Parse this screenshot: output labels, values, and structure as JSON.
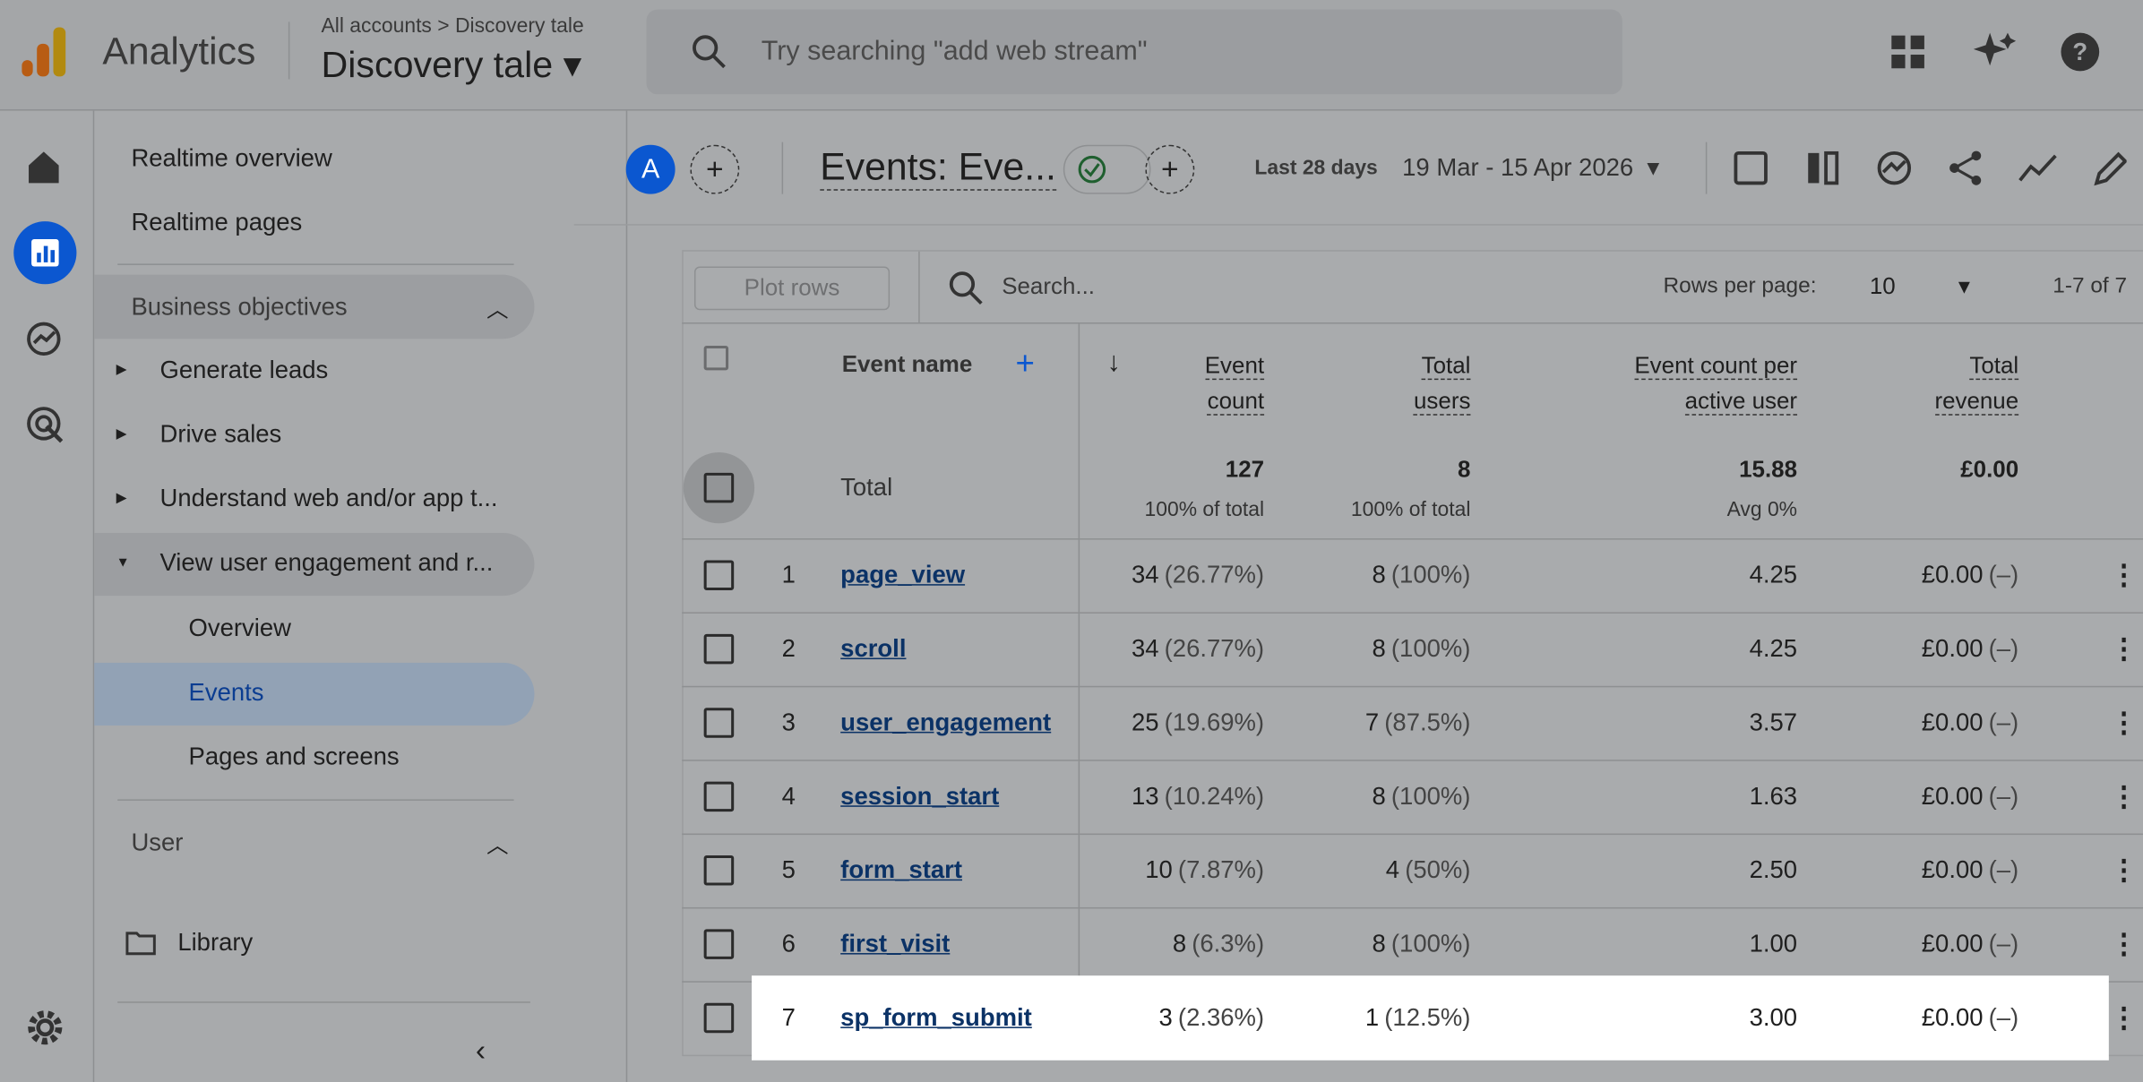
{
  "header": {
    "app": "Analytics",
    "breadcrumb": [
      "All accounts",
      "Discovery tale"
    ],
    "property": "Discovery tale",
    "search_placeholder": "Try searching \"add web stream\""
  },
  "nav": {
    "top": [
      "Realtime overview",
      "Realtime pages"
    ],
    "sections": [
      {
        "title": "Business objectives",
        "items": [
          "Generate leads",
          "Drive sales",
          "Understand web and/or app t...",
          "View user engagement and r..."
        ],
        "subitems": [
          "Overview",
          "Events",
          "Pages and screens"
        ]
      },
      {
        "title": "User"
      }
    ],
    "library": "Library"
  },
  "toolbar": {
    "avatar": "A",
    "report_title": "Events: Eve...",
    "range_label": "Last 28 days",
    "range": "19 Mar - 15 Apr 2026"
  },
  "table": {
    "plot_rows": "Plot rows",
    "search": "Search...",
    "rows_per_page_label": "Rows per page:",
    "rows_per_page": "10",
    "pagination": "1-7 of 7",
    "columns": [
      "Event name",
      "Event count",
      "Total users",
      "Event count per active user",
      "Total revenue"
    ],
    "total": {
      "label": "Total",
      "event_count": "127",
      "event_count_note": "100% of total",
      "users": "8",
      "users_note": "100% of total",
      "per_user": "15.88",
      "per_user_note": "Avg 0%",
      "revenue": "£0.00"
    },
    "rows": [
      [
        "1",
        "page_view",
        "34",
        "(26.77%)",
        "8",
        "(100%)",
        "4.25",
        "£0.00",
        "(–)"
      ],
      [
        "2",
        "scroll",
        "34",
        "(26.77%)",
        "8",
        "(100%)",
        "4.25",
        "£0.00",
        "(–)"
      ],
      [
        "3",
        "user_engagement",
        "25",
        "(19.69%)",
        "7",
        "(87.5%)",
        "3.57",
        "£0.00",
        "(–)"
      ],
      [
        "4",
        "session_start",
        "13",
        "(10.24%)",
        "8",
        "(100%)",
        "1.63",
        "£0.00",
        "(–)"
      ],
      [
        "5",
        "form_start",
        "10",
        "(7.87%)",
        "4",
        "(50%)",
        "2.50",
        "£0.00",
        "(–)"
      ],
      [
        "6",
        "first_visit",
        "8",
        "(6.3%)",
        "8",
        "(100%)",
        "1.00",
        "£0.00",
        "(–)"
      ],
      [
        "7",
        "sp_form_submit",
        "3",
        "(2.36%)",
        "1",
        "(12.5%)",
        "3.00",
        "£0.00",
        "(–)"
      ]
    ]
  }
}
